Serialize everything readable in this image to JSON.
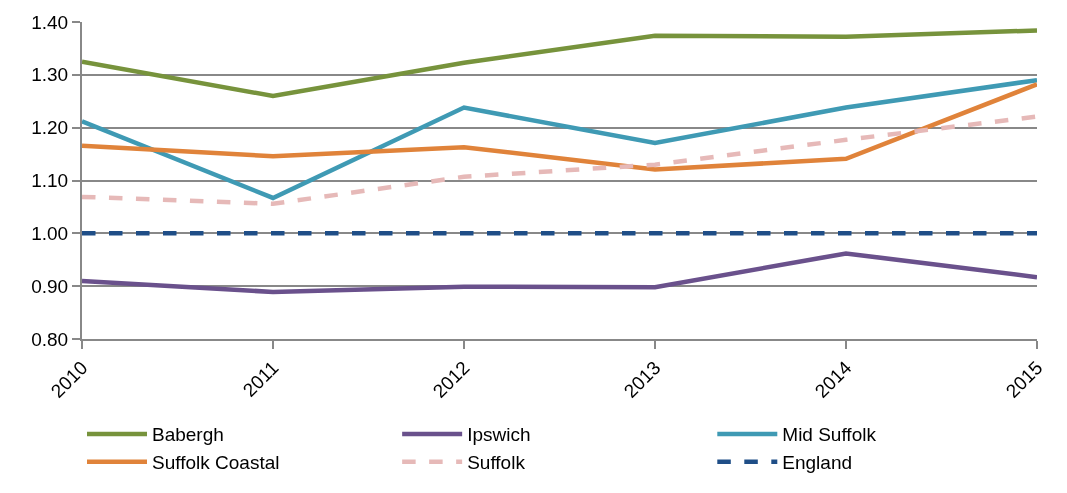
{
  "chart_data": {
    "type": "line",
    "categories": [
      "2010",
      "2011",
      "2012",
      "2013",
      "2014",
      "2015"
    ],
    "series": [
      {
        "name": "Babergh",
        "color": "#77933c",
        "values": [
          1.325,
          1.26,
          1.323,
          1.374,
          1.372,
          1.384
        ]
      },
      {
        "name": "Ipswich",
        "color": "#6a518c",
        "values": [
          0.91,
          0.889,
          0.899,
          0.898,
          0.962,
          0.917
        ]
      },
      {
        "name": "Mid Suffolk",
        "color": "#3f9ab4",
        "values": [
          1.212,
          1.067,
          1.238,
          1.171,
          1.238,
          1.29
        ]
      },
      {
        "name": "Suffolk Coastal",
        "color": "#e0833a",
        "values": [
          1.166,
          1.146,
          1.163,
          1.121,
          1.141,
          1.282
        ]
      },
      {
        "name": "Suffolk",
        "color": "#e6b9b8",
        "line_style": "dashed",
        "values": [
          1.069,
          1.056,
          1.107,
          1.13,
          1.177,
          1.221
        ]
      },
      {
        "name": "England",
        "color": "#1f4e87",
        "line_style": "dashed",
        "values": [
          1.0,
          1.0,
          1.0,
          1.0,
          1.0,
          1.0
        ]
      }
    ],
    "ylim": [
      0.8,
      1.4
    ],
    "yticks": [
      {
        "value": 0.8,
        "label": "0.80"
      },
      {
        "value": 0.9,
        "label": "0.90"
      },
      {
        "value": 1.0,
        "label": "1.00"
      },
      {
        "value": 1.1,
        "label": "1.10"
      },
      {
        "value": 1.2,
        "label": "1.20"
      },
      {
        "value": 1.3,
        "label": "1.30"
      },
      {
        "value": 1.4,
        "label": "1.40"
      }
    ],
    "grid": "y",
    "legend": "bottom",
    "marker": "none",
    "line_style": "solid"
  }
}
